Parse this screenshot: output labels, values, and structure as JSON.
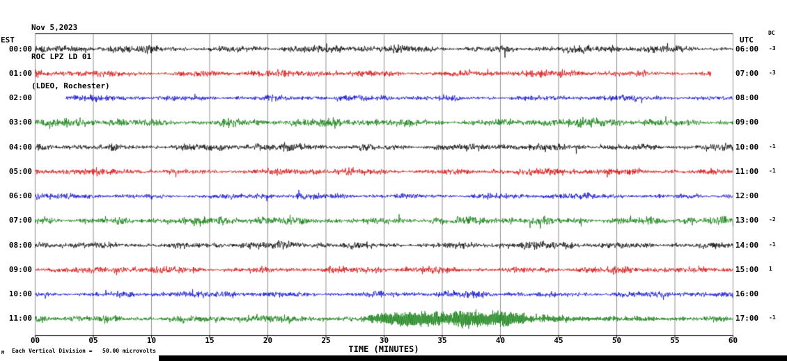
{
  "header": {
    "date": "Nov 5,2023",
    "station": "ROC LPZ LD 01",
    "network": "(LDEO, Rochester)"
  },
  "axes": {
    "left_time_label": "EST",
    "right_time_label": "UTC",
    "dc_column_label": "DC",
    "x_axis_label": "TIME (MINUTES)",
    "x_ticks": [
      "00",
      "05",
      "10",
      "15",
      "20",
      "25",
      "30",
      "35",
      "40",
      "45",
      "50",
      "55",
      "60"
    ]
  },
  "footer": {
    "scale_note": "Each Vertical Division =   50.00 microvolts",
    "corner_mark": "M"
  },
  "colors": {
    "black": "#000000",
    "red": "#d40000",
    "blue": "#0000cc",
    "green": "#007700",
    "grid": "#8f8f8f",
    "frame": "#000000"
  },
  "chart_data": {
    "type": "line",
    "title": "Helicorder seismogram ROC LPZ LD 01 (LDEO, Rochester), Nov 5, 2023",
    "xlabel": "TIME (MINUTES)",
    "x_range_minutes": [
      0,
      60
    ],
    "minutes_per_line": 60,
    "vertical_division_microvolts": 50.0,
    "event_summary": "Large seismic signal on the 11:00 EST (17:00 UTC) line between ~27 and ~45 minutes, with decaying coda to 60 minutes",
    "rows": [
      {
        "est": "00:00",
        "utc": "06:00",
        "dc": "-3",
        "color": "black",
        "amp": 2.7,
        "start": 0,
        "end": 60,
        "seed": 11
      },
      {
        "est": "01:00",
        "utc": "07:00",
        "dc": "-3",
        "color": "red",
        "amp": 2.5,
        "start": 0,
        "end": 58.1,
        "seed": 23
      },
      {
        "est": "02:00",
        "utc": "08:00",
        "dc": "",
        "color": "blue",
        "amp": 2.1,
        "start": 2.6,
        "end": 60,
        "seed": 37
      },
      {
        "est": "03:00",
        "utc": "09:00",
        "dc": "",
        "color": "green",
        "amp": 3.1,
        "start": 0,
        "end": 60,
        "seed": 41
      },
      {
        "est": "04:00",
        "utc": "10:00",
        "dc": "-1",
        "color": "black",
        "amp": 2.7,
        "start": 0,
        "end": 60,
        "seed": 53
      },
      {
        "est": "05:00",
        "utc": "11:00",
        "dc": "-1",
        "color": "red",
        "amp": 2.5,
        "start": 0,
        "end": 60,
        "seed": 67
      },
      {
        "est": "06:00",
        "utc": "12:00",
        "dc": "",
        "color": "blue",
        "amp": 2.1,
        "start": 0,
        "end": 60,
        "seed": 71
      },
      {
        "est": "07:00",
        "utc": "13:00",
        "dc": "-2",
        "color": "green",
        "amp": 3.1,
        "start": 0,
        "end": 60,
        "seed": 83
      },
      {
        "est": "08:00",
        "utc": "14:00",
        "dc": "-1",
        "color": "black",
        "amp": 2.7,
        "start": 0,
        "end": 60,
        "seed": 97
      },
      {
        "est": "09:00",
        "utc": "15:00",
        "dc": "1",
        "color": "red",
        "amp": 2.5,
        "start": 0,
        "end": 60,
        "seed": 103
      },
      {
        "est": "10:00",
        "utc": "16:00",
        "dc": "",
        "color": "blue",
        "amp": 2.3,
        "start": 0,
        "end": 60,
        "seed": 113,
        "event": {
          "bursts": [
            {
              "c": 59.4,
              "w": 1.2,
              "a": 2.5
            }
          ]
        }
      },
      {
        "est": "11:00",
        "utc": "17:00",
        "dc": "-1",
        "color": "green",
        "amp": 2.9,
        "start": 0,
        "end": 60,
        "seed": 127,
        "event": {
          "bursts": [
            {
              "c": 29.2,
              "w": 1.1,
              "a": 5
            },
            {
              "c": 31.8,
              "w": 2.2,
              "a": 11
            },
            {
              "c": 35.0,
              "w": 2.2,
              "a": 9
            },
            {
              "c": 38.0,
              "w": 1.5,
              "a": 6
            },
            {
              "c": 40.5,
              "w": 1.5,
              "a": 8.5
            }
          ],
          "coda": {
            "from": 36,
            "a": 5,
            "tau": 18
          }
        }
      }
    ]
  }
}
